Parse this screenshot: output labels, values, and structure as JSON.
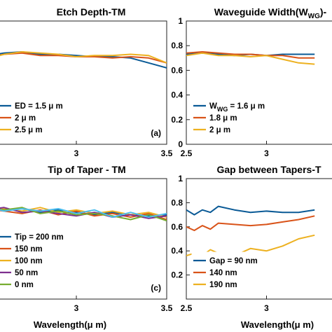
{
  "chart_data": [
    {
      "type": "line",
      "title": "Etch Depth-TM",
      "panel_label": "(a)",
      "xlabel": "",
      "ylabel": "",
      "xlim": [
        2.5,
        3.5
      ],
      "ylim": [
        0,
        1
      ],
      "x_ticks": [
        "3",
        "3.5"
      ],
      "y_ticks": [],
      "legend_position": "bottom-left",
      "series": [
        {
          "name": "ED = 1.5 μ m",
          "color": "#0a5a96",
          "x": [
            2.5,
            2.6,
            2.7,
            2.8,
            2.9,
            3.0,
            3.1,
            3.2,
            3.3,
            3.4,
            3.5
          ],
          "y": [
            0.72,
            0.74,
            0.75,
            0.73,
            0.73,
            0.72,
            0.71,
            0.71,
            0.7,
            0.66,
            0.62
          ]
        },
        {
          "name": "2 μ m",
          "color": "#d95319",
          "x": [
            2.5,
            2.6,
            2.7,
            2.8,
            2.9,
            3.0,
            3.1,
            3.2,
            3.3,
            3.4,
            3.5
          ],
          "y": [
            0.7,
            0.73,
            0.74,
            0.72,
            0.72,
            0.71,
            0.71,
            0.7,
            0.71,
            0.7,
            0.66
          ]
        },
        {
          "name": "2.5 μ m",
          "color": "#edb120",
          "x": [
            2.5,
            2.6,
            2.7,
            2.8,
            2.9,
            3.0,
            3.1,
            3.2,
            3.3,
            3.4,
            3.5
          ],
          "y": [
            0.69,
            0.73,
            0.75,
            0.74,
            0.73,
            0.71,
            0.72,
            0.72,
            0.73,
            0.72,
            0.66
          ]
        }
      ]
    },
    {
      "type": "line",
      "title": "Waveguide Width(W",
      "title_sub": "WG",
      "title_suffix": ")-",
      "xlabel": "",
      "ylabel": "",
      "xlim": [
        2.5,
        3.5
      ],
      "ylim": [
        0,
        1
      ],
      "x_ticks": [
        "2.5",
        "3"
      ],
      "y_ticks": [
        "0",
        "0.2",
        "0.4",
        "0.6",
        "0.8",
        "1"
      ],
      "legend_position": "bottom-left",
      "series": [
        {
          "name": "W",
          "name_sub": "WG",
          "name_suffix": " = 1.6 μ m",
          "color": "#0a5a96",
          "x": [
            2.5,
            2.6,
            2.7,
            2.8,
            2.9,
            3.0,
            3.1,
            3.2,
            3.3
          ],
          "y": [
            0.73,
            0.74,
            0.73,
            0.72,
            0.73,
            0.72,
            0.73,
            0.73,
            0.73
          ]
        },
        {
          "name": "1.8 μ m",
          "color": "#d95319",
          "x": [
            2.5,
            2.6,
            2.7,
            2.8,
            2.9,
            3.0,
            3.1,
            3.2,
            3.3
          ],
          "y": [
            0.74,
            0.75,
            0.74,
            0.73,
            0.73,
            0.72,
            0.72,
            0.7,
            0.7
          ]
        },
        {
          "name": "2 μ m",
          "color": "#edb120",
          "x": [
            2.5,
            2.6,
            2.7,
            2.8,
            2.9,
            3.0,
            3.1,
            3.2,
            3.3
          ],
          "y": [
            0.72,
            0.74,
            0.72,
            0.72,
            0.71,
            0.72,
            0.69,
            0.66,
            0.65
          ]
        }
      ]
    },
    {
      "type": "line",
      "title": "Tip of Taper - TM",
      "panel_label": "(c)",
      "xlabel": "Wavelength(μ m)",
      "ylabel": "",
      "xlim": [
        2.5,
        3.5
      ],
      "ylim": [
        0,
        1
      ],
      "x_ticks": [
        "3",
        "3.5"
      ],
      "y_ticks": [],
      "legend_position": "bottom-left",
      "series": [
        {
          "name": "Tip = 200 nm",
          "color": "#0a5a96",
          "x": [
            2.5,
            2.6,
            2.7,
            2.8,
            2.9,
            3.0,
            3.1,
            3.2,
            3.3,
            3.4,
            3.5
          ],
          "y": [
            0.76,
            0.74,
            0.75,
            0.72,
            0.74,
            0.72,
            0.7,
            0.72,
            0.7,
            0.69,
            0.7
          ]
        },
        {
          "name": "150 nm",
          "color": "#d95319",
          "x": [
            2.5,
            2.6,
            2.7,
            2.8,
            2.9,
            3.0,
            3.1,
            3.2,
            3.3,
            3.4,
            3.5
          ],
          "y": [
            0.75,
            0.73,
            0.71,
            0.74,
            0.7,
            0.73,
            0.69,
            0.71,
            0.68,
            0.71,
            0.66
          ]
        },
        {
          "name": "100 nm",
          "color": "#edb120",
          "x": [
            2.5,
            2.6,
            2.7,
            2.8,
            2.9,
            3.0,
            3.1,
            3.2,
            3.3,
            3.4,
            3.5
          ],
          "y": [
            0.77,
            0.75,
            0.73,
            0.76,
            0.72,
            0.74,
            0.71,
            0.73,
            0.7,
            0.72,
            0.68
          ]
        },
        {
          "name": "50 nm",
          "color": "#7e2f8e",
          "x": [
            2.5,
            2.6,
            2.7,
            2.8,
            2.9,
            3.0,
            3.1,
            3.2,
            3.3,
            3.4,
            3.5
          ],
          "y": [
            0.74,
            0.76,
            0.72,
            0.73,
            0.71,
            0.69,
            0.72,
            0.68,
            0.7,
            0.67,
            0.69
          ]
        },
        {
          "name": "0 nm",
          "color": "#77ac30",
          "x": [
            2.5,
            2.6,
            2.7,
            2.8,
            2.9,
            3.0,
            3.1,
            3.2,
            3.3,
            3.4,
            3.5
          ],
          "y": [
            0.75,
            0.74,
            0.76,
            0.71,
            0.73,
            0.7,
            0.71,
            0.69,
            0.66,
            0.7,
            0.65
          ]
        },
        {
          "name": "",
          "color": "#4dbeee",
          "x": [
            2.5,
            2.6,
            2.7,
            2.8,
            2.9,
            3.0,
            3.1,
            3.2,
            3.3,
            3.4,
            3.5
          ],
          "y": [
            0.77,
            0.73,
            0.75,
            0.73,
            0.75,
            0.71,
            0.74,
            0.68,
            0.72,
            0.68,
            0.71
          ]
        }
      ]
    },
    {
      "type": "line",
      "title": "Gap between Tapers-T",
      "xlabel": "Wavelength(μ m)",
      "ylabel": "",
      "xlim": [
        2.5,
        3.5
      ],
      "ylim": [
        0,
        1
      ],
      "x_ticks": [
        "2.5",
        "3"
      ],
      "y_ticks": [
        "0.2",
        "0.4",
        "0.6",
        "0.8",
        "1"
      ],
      "legend_position": "bottom-left",
      "series": [
        {
          "name": "Gap = 90 nm",
          "color": "#0a5a96",
          "x": [
            2.5,
            2.55,
            2.6,
            2.65,
            2.7,
            2.8,
            2.9,
            3.0,
            3.1,
            3.2,
            3.3
          ],
          "y": [
            0.74,
            0.7,
            0.74,
            0.72,
            0.77,
            0.74,
            0.72,
            0.73,
            0.72,
            0.72,
            0.74
          ]
        },
        {
          "name": "140 nm",
          "color": "#d95319",
          "x": [
            2.5,
            2.55,
            2.6,
            2.65,
            2.7,
            2.8,
            2.9,
            3.0,
            3.1,
            3.2,
            3.3
          ],
          "y": [
            0.6,
            0.57,
            0.61,
            0.58,
            0.63,
            0.62,
            0.61,
            0.62,
            0.64,
            0.66,
            0.69
          ]
        },
        {
          "name": "190 nm",
          "color": "#edb120",
          "x": [
            2.5,
            2.55,
            2.6,
            2.65,
            2.7,
            2.8,
            2.9,
            3.0,
            3.1,
            3.2,
            3.3
          ],
          "y": [
            0.36,
            0.38,
            0.36,
            0.41,
            0.38,
            0.36,
            0.42,
            0.4,
            0.44,
            0.5,
            0.53
          ]
        }
      ]
    }
  ]
}
